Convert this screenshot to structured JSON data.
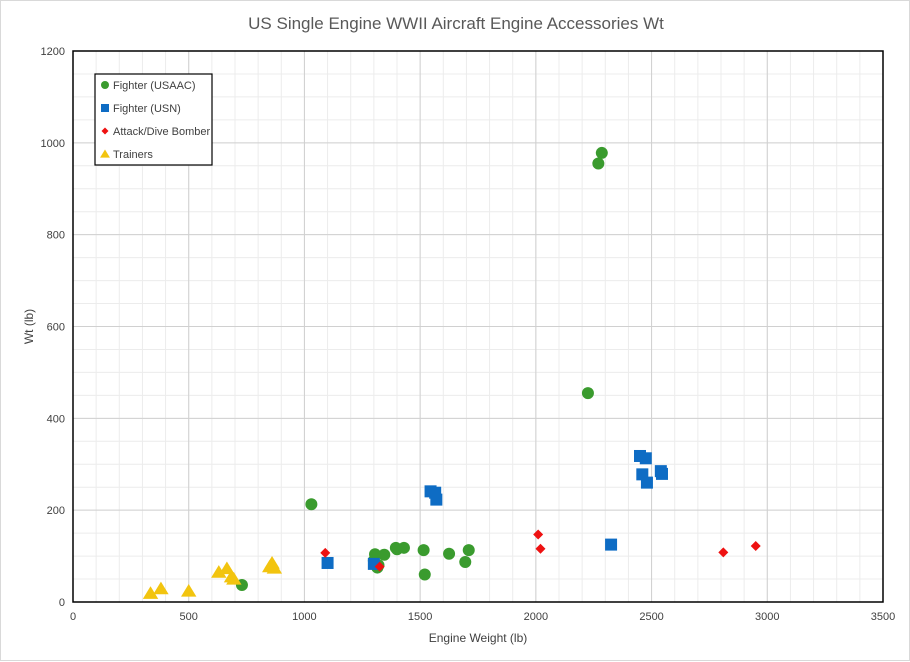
{
  "chart_data": {
    "type": "scatter",
    "title": "US Single Engine WWII Aircraft Engine Accessories Wt",
    "xlabel": "Engine Weight (lb)",
    "ylabel": "Wt (lb)",
    "xlim": [
      0,
      3500
    ],
    "ylim": [
      0,
      1200
    ],
    "xticks": [
      "0",
      "500",
      "1000",
      "1500",
      "2000",
      "2500",
      "3000",
      "3500"
    ],
    "yticks": [
      "0",
      "200",
      "400",
      "600",
      "800",
      "1000",
      "1200"
    ],
    "grid": true,
    "legend_position": "top-left",
    "series": [
      {
        "name": "Fighter (USAAC)",
        "marker": "circle",
        "color": "#3a9b2e",
        "points": [
          [
            730,
            37
          ],
          [
            1030,
            213
          ],
          [
            1300,
            90
          ],
          [
            1305,
            104
          ],
          [
            1315,
            75
          ],
          [
            1320,
            80
          ],
          [
            1345,
            103
          ],
          [
            1395,
            118
          ],
          [
            1400,
            115
          ],
          [
            1430,
            118
          ],
          [
            1515,
            113
          ],
          [
            1520,
            60
          ],
          [
            1625,
            105
          ],
          [
            1695,
            87
          ],
          [
            1710,
            113
          ],
          [
            2225,
            455
          ],
          [
            2270,
            955
          ],
          [
            2285,
            978
          ]
        ]
      },
      {
        "name": "Fighter (USN)",
        "marker": "square",
        "color": "#0e6cc4",
        "points": [
          [
            1100,
            85
          ],
          [
            1300,
            83
          ],
          [
            1545,
            241
          ],
          [
            1565,
            238
          ],
          [
            1570,
            223
          ],
          [
            2325,
            125
          ],
          [
            2450,
            318
          ],
          [
            2460,
            278
          ],
          [
            2475,
            313
          ],
          [
            2480,
            260
          ],
          [
            2540,
            285
          ],
          [
            2545,
            279
          ]
        ]
      },
      {
        "name": "Attack/Dive Bomber",
        "marker": "diamond",
        "color": "#ee1111",
        "points": [
          [
            1090,
            107
          ],
          [
            1325,
            77
          ],
          [
            2010,
            147
          ],
          [
            2020,
            116
          ],
          [
            2810,
            108
          ],
          [
            2950,
            122
          ]
        ]
      },
      {
        "name": "Trainers",
        "marker": "triangle",
        "color": "#f2c40f",
        "points": [
          [
            335,
            19
          ],
          [
            380,
            29
          ],
          [
            500,
            24
          ],
          [
            630,
            65
          ],
          [
            665,
            73
          ],
          [
            685,
            55
          ],
          [
            695,
            50
          ],
          [
            850,
            77
          ],
          [
            860,
            85
          ],
          [
            870,
            74
          ]
        ]
      }
    ]
  }
}
